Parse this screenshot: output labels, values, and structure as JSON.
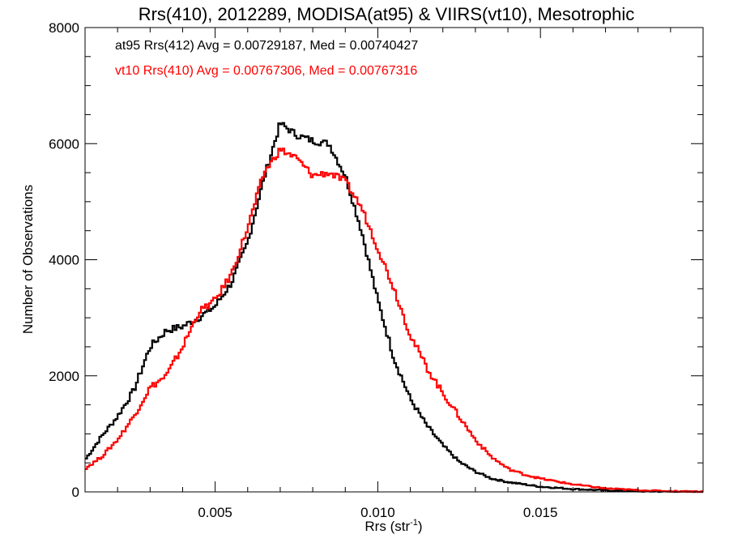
{
  "chart_data": {
    "type": "line",
    "title": "Rrs(410), 2012289, MODISA(at95) & VIIRS(vt10), Mesotrophic",
    "xlabel": "Rrs (str",
    "xlabel_sup": "-1",
    "xlabel_close": ")",
    "ylabel": "Number of Observations",
    "xlim": [
      0.001,
      0.02
    ],
    "ylim": [
      0,
      8000
    ],
    "xticks": [
      0.005,
      0.01,
      0.015
    ],
    "xtick_labels": [
      "0.005",
      "0.010",
      "0.015"
    ],
    "yticks": [
      0,
      2000,
      4000,
      6000,
      8000
    ],
    "ytick_labels": [
      "0",
      "2000",
      "4000",
      "6000",
      "8000"
    ],
    "grid": false,
    "line_shape": "step",
    "stats": [
      {
        "text": "at95 Rrs(412) Avg = 0.00729187, Med = 0.00740427",
        "color": "#000000"
      },
      {
        "text": "vt10 Rrs(410) Avg = 0.00767306, Med = 0.00767316",
        "color": "#ff0000"
      }
    ],
    "series": [
      {
        "color": "#000000",
        "points": [
          [
            0.001,
            550
          ],
          [
            0.0015,
            950
          ],
          [
            0.002,
            1300
          ],
          [
            0.0025,
            1750
          ],
          [
            0.003,
            2500
          ],
          [
            0.0035,
            2780
          ],
          [
            0.004,
            2850
          ],
          [
            0.0045,
            3000
          ],
          [
            0.005,
            3200
          ],
          [
            0.0055,
            3600
          ],
          [
            0.006,
            4300
          ],
          [
            0.0065,
            5400
          ],
          [
            0.007,
            6350
          ],
          [
            0.0075,
            6150
          ],
          [
            0.008,
            6050
          ],
          [
            0.0085,
            6000
          ],
          [
            0.009,
            5450
          ],
          [
            0.0095,
            4500
          ],
          [
            0.01,
            3300
          ],
          [
            0.0105,
            2300
          ],
          [
            0.011,
            1600
          ],
          [
            0.0115,
            1150
          ],
          [
            0.012,
            800
          ],
          [
            0.0125,
            520
          ],
          [
            0.013,
            350
          ],
          [
            0.0135,
            230
          ],
          [
            0.014,
            170
          ],
          [
            0.0145,
            130
          ],
          [
            0.015,
            90
          ],
          [
            0.016,
            50
          ],
          [
            0.017,
            25
          ],
          [
            0.018,
            12
          ],
          [
            0.019,
            5
          ],
          [
            0.02,
            2
          ]
        ]
      },
      {
        "color": "#ff0000",
        "points": [
          [
            0.001,
            400
          ],
          [
            0.0015,
            600
          ],
          [
            0.002,
            900
          ],
          [
            0.0025,
            1300
          ],
          [
            0.003,
            1800
          ],
          [
            0.0035,
            2000
          ],
          [
            0.004,
            2500
          ],
          [
            0.0045,
            3100
          ],
          [
            0.005,
            3300
          ],
          [
            0.0055,
            3750
          ],
          [
            0.006,
            4550
          ],
          [
            0.0065,
            5500
          ],
          [
            0.007,
            5900
          ],
          [
            0.0075,
            5750
          ],
          [
            0.008,
            5450
          ],
          [
            0.0085,
            5500
          ],
          [
            0.009,
            5350
          ],
          [
            0.0095,
            4900
          ],
          [
            0.01,
            4200
          ],
          [
            0.0105,
            3500
          ],
          [
            0.011,
            2700
          ],
          [
            0.0115,
            2150
          ],
          [
            0.012,
            1700
          ],
          [
            0.0125,
            1300
          ],
          [
            0.013,
            900
          ],
          [
            0.0135,
            600
          ],
          [
            0.014,
            400
          ],
          [
            0.0145,
            300
          ],
          [
            0.015,
            230
          ],
          [
            0.016,
            130
          ],
          [
            0.017,
            60
          ],
          [
            0.018,
            30
          ],
          [
            0.019,
            12
          ],
          [
            0.02,
            5
          ]
        ]
      }
    ]
  }
}
